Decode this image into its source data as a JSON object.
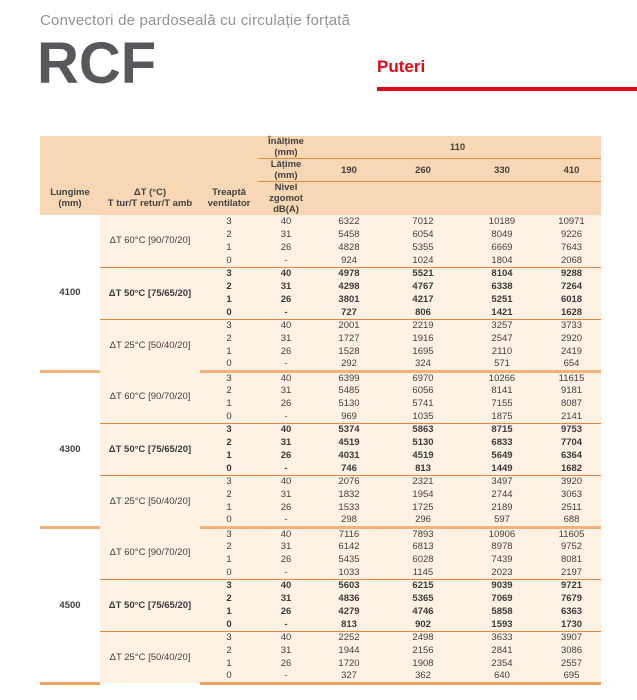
{
  "page": {
    "subtitle": "Convectori de pardoseală cu circulație forțată",
    "product": "RCF",
    "section_title": "Puteri",
    "accent_red": "#e30613",
    "header_bg": "#f8d8b4",
    "body_bg": "#fdf2e3",
    "divider_orange": "#e8883c"
  },
  "table": {
    "header": {
      "inaltime_label": "Înălțime (mm)",
      "inaltime_value": "110",
      "latime_label": "Lățime (mm)",
      "widths": [
        "190",
        "260",
        "330",
        "410"
      ],
      "lungime_label": "Lungime\n(mm)",
      "dt_label": "ΔT (°C)\nT tur/T retur/T amb",
      "treapta_label": "Treaptă\nventilator",
      "nivel_label": "Nivel zgomot\ndB(A)"
    },
    "blocks": [
      {
        "lungime": "4100",
        "sections": [
          {
            "dt": "ΔT 60°C [90/70/20]",
            "bold": false,
            "rows": [
              [
                "3",
                "40",
                "6322",
                "7012",
                "10189",
                "10971"
              ],
              [
                "2",
                "31",
                "5458",
                "6054",
                "8049",
                "9226"
              ],
              [
                "1",
                "26",
                "4828",
                "5355",
                "6669",
                "7643"
              ],
              [
                "0",
                "-",
                "924",
                "1024",
                "1804",
                "2068"
              ]
            ]
          },
          {
            "dt": "ΔT 50°C [75/65/20]",
            "bold": true,
            "rows": [
              [
                "3",
                "40",
                "4978",
                "5521",
                "8104",
                "9288"
              ],
              [
                "2",
                "31",
                "4298",
                "4767",
                "6338",
                "7264"
              ],
              [
                "1",
                "26",
                "3801",
                "4217",
                "5251",
                "6018"
              ],
              [
                "0",
                "-",
                "727",
                "806",
                "1421",
                "1628"
              ]
            ]
          },
          {
            "dt": "ΔT 25°C [50/40/20]",
            "bold": false,
            "rows": [
              [
                "3",
                "40",
                "2001",
                "2219",
                "3257",
                "3733"
              ],
              [
                "2",
                "31",
                "1727",
                "1916",
                "2547",
                "2920"
              ],
              [
                "1",
                "26",
                "1528",
                "1695",
                "2110",
                "2419"
              ],
              [
                "0",
                "-",
                "292",
                "324",
                "571",
                "654"
              ]
            ]
          }
        ]
      },
      {
        "lungime": "4300",
        "sections": [
          {
            "dt": "ΔT 60°C [90/70/20]",
            "bold": false,
            "rows": [
              [
                "3",
                "40",
                "6399",
                "6970",
                "10266",
                "11615"
              ],
              [
                "2",
                "31",
                "5485",
                "6056",
                "8141",
                "9181"
              ],
              [
                "1",
                "26",
                "5130",
                "5741",
                "7155",
                "8087"
              ],
              [
                "0",
                "-",
                "969",
                "1035",
                "1875",
                "2141"
              ]
            ]
          },
          {
            "dt": "ΔT 50°C [75/65/20]",
            "bold": true,
            "rows": [
              [
                "3",
                "40",
                "5374",
                "5863",
                "8715",
                "9753"
              ],
              [
                "2",
                "31",
                "4519",
                "5130",
                "6833",
                "7704"
              ],
              [
                "1",
                "26",
                "4031",
                "4519",
                "5649",
                "6364"
              ],
              [
                "0",
                "-",
                "746",
                "813",
                "1449",
                "1682"
              ]
            ]
          },
          {
            "dt": "ΔT 25°C [50/40/20]",
            "bold": false,
            "rows": [
              [
                "3",
                "40",
                "2076",
                "2321",
                "3497",
                "3920"
              ],
              [
                "2",
                "31",
                "1832",
                "1954",
                "2744",
                "3063"
              ],
              [
                "1",
                "26",
                "1533",
                "1725",
                "2189",
                "2511"
              ],
              [
                "0",
                "-",
                "298",
                "296",
                "597",
                "688"
              ]
            ]
          }
        ]
      },
      {
        "lungime": "4500",
        "sections": [
          {
            "dt": "ΔT 60°C [90/70/20]",
            "bold": false,
            "rows": [
              [
                "3",
                "40",
                "7116",
                "7893",
                "10906",
                "11605"
              ],
              [
                "2",
                "31",
                "6142",
                "6813",
                "8978",
                "9752"
              ],
              [
                "1",
                "26",
                "5435",
                "6028",
                "7439",
                "8081"
              ],
              [
                "0",
                "-",
                "1033",
                "1145",
                "2023",
                "2197"
              ]
            ]
          },
          {
            "dt": "ΔT 50°C [75/65/20]",
            "bold": true,
            "rows": [
              [
                "3",
                "40",
                "5603",
                "6215",
                "9039",
                "9721"
              ],
              [
                "2",
                "31",
                "4836",
                "5365",
                "7069",
                "7679"
              ],
              [
                "1",
                "26",
                "4279",
                "4746",
                "5858",
                "6363"
              ],
              [
                "0",
                "-",
                "813",
                "902",
                "1593",
                "1730"
              ]
            ]
          },
          {
            "dt": "ΔT 25°C [50/40/20]",
            "bold": false,
            "rows": [
              [
                "3",
                "40",
                "2252",
                "2498",
                "3633",
                "3907"
              ],
              [
                "2",
                "31",
                "1944",
                "2156",
                "2841",
                "3086"
              ],
              [
                "1",
                "26",
                "1720",
                "1908",
                "2354",
                "2557"
              ],
              [
                "0",
                "-",
                "327",
                "362",
                "640",
                "695"
              ]
            ]
          }
        ]
      }
    ]
  }
}
